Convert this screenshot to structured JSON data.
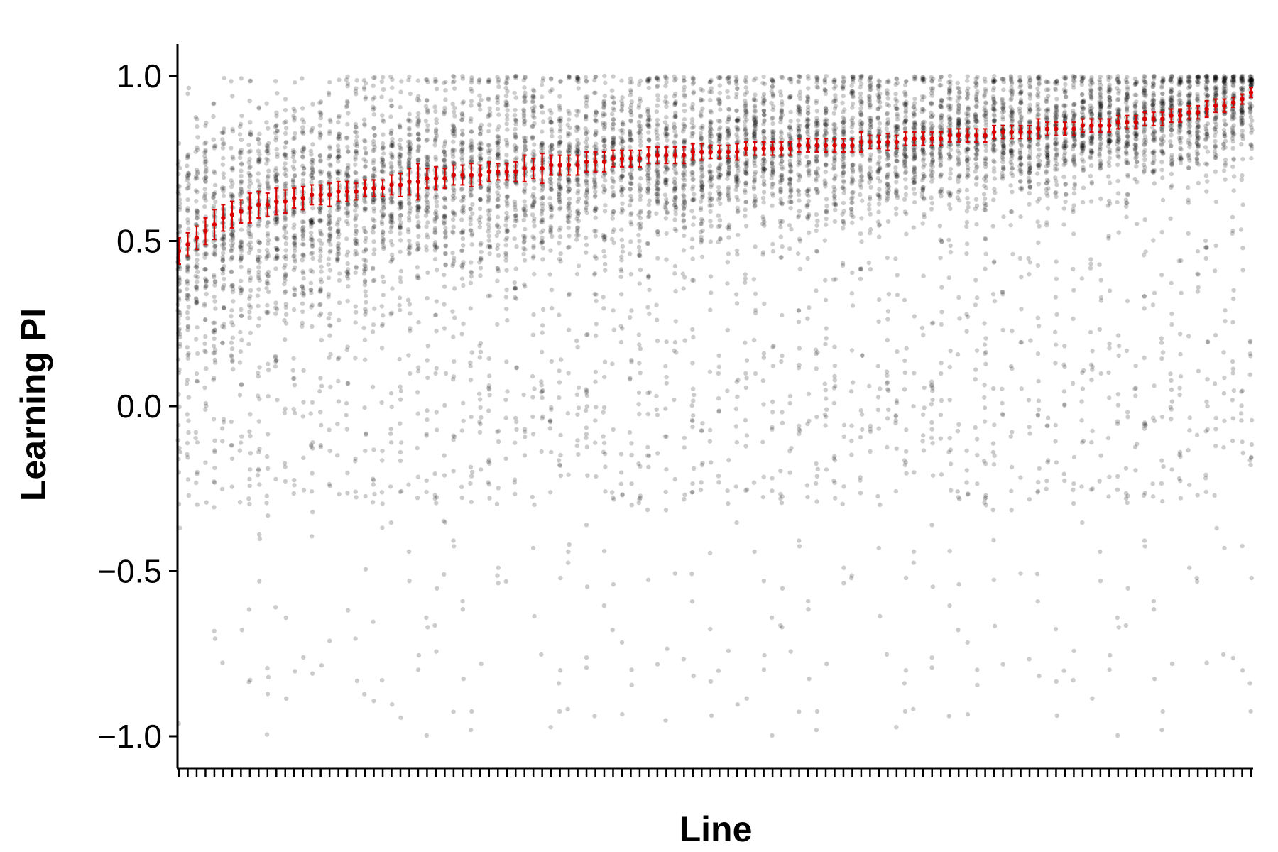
{
  "chart_data": {
    "type": "scatter",
    "xlabel": "Line",
    "ylabel": "Learning PI",
    "ylim": [
      -1.1,
      1.1
    ],
    "yticks": [
      -1.0,
      -0.5,
      0.0,
      0.5,
      1.0
    ],
    "ytick_labels": [
      "−1.0",
      "−0.5",
      "0.0",
      "0.5",
      "1.0"
    ],
    "n_lines": 122,
    "x_tick_labels_shown": false,
    "legend": "none",
    "grid": false,
    "colors": {
      "individual_points": "#000000",
      "mean_and_error": "#d90000",
      "axis": "#000000"
    },
    "individual_point_opacity": 0.2,
    "mean_start": 0.47,
    "mean_end": 0.95,
    "mean_pi": [
      0.47,
      0.49,
      0.51,
      0.53,
      0.55,
      0.57,
      0.58,
      0.59,
      0.6,
      0.61,
      0.61,
      0.62,
      0.62,
      0.63,
      0.63,
      0.64,
      0.64,
      0.64,
      0.65,
      0.65,
      0.65,
      0.66,
      0.66,
      0.66,
      0.67,
      0.67,
      0.68,
      0.68,
      0.69,
      0.69,
      0.69,
      0.7,
      0.7,
      0.7,
      0.7,
      0.71,
      0.71,
      0.71,
      0.71,
      0.72,
      0.72,
      0.72,
      0.73,
      0.73,
      0.73,
      0.73,
      0.74,
      0.74,
      0.74,
      0.75,
      0.75,
      0.75,
      0.75,
      0.76,
      0.76,
      0.76,
      0.76,
      0.76,
      0.77,
      0.77,
      0.77,
      0.77,
      0.77,
      0.77,
      0.78,
      0.78,
      0.78,
      0.78,
      0.78,
      0.78,
      0.79,
      0.79,
      0.79,
      0.79,
      0.79,
      0.79,
      0.79,
      0.8,
      0.8,
      0.8,
      0.8,
      0.8,
      0.81,
      0.81,
      0.81,
      0.81,
      0.81,
      0.82,
      0.82,
      0.82,
      0.82,
      0.82,
      0.83,
      0.83,
      0.83,
      0.83,
      0.83,
      0.84,
      0.84,
      0.84,
      0.84,
      0.84,
      0.85,
      0.85,
      0.85,
      0.85,
      0.86,
      0.86,
      0.86,
      0.87,
      0.87,
      0.87,
      0.88,
      0.88,
      0.89,
      0.89,
      0.9,
      0.91,
      0.91,
      0.92,
      0.93,
      0.95
    ],
    "sem": [
      0.04,
      0.035,
      0.035,
      0.04,
      0.045,
      0.04,
      0.04,
      0.035,
      0.045,
      0.04,
      0.035,
      0.04,
      0.035,
      0.03,
      0.035,
      0.03,
      0.03,
      0.035,
      0.03,
      0.03,
      0.025,
      0.025,
      0.025,
      0.025,
      0.03,
      0.035,
      0.04,
      0.055,
      0.03,
      0.035,
      0.03,
      0.03,
      0.03,
      0.035,
      0.03,
      0.03,
      0.025,
      0.025,
      0.03,
      0.04,
      0.03,
      0.045,
      0.03,
      0.03,
      0.03,
      0.03,
      0.03,
      0.03,
      0.03,
      0.025,
      0.025,
      0.025,
      0.025,
      0.025,
      0.025,
      0.025,
      0.025,
      0.025,
      0.025,
      0.025,
      0.02,
      0.02,
      0.02,
      0.025,
      0.02,
      0.02,
      0.02,
      0.02,
      0.02,
      0.02,
      0.02,
      0.02,
      0.02,
      0.02,
      0.02,
      0.02,
      0.02,
      0.03,
      0.02,
      0.02,
      0.025,
      0.02,
      0.02,
      0.02,
      0.02,
      0.02,
      0.02,
      0.02,
      0.02,
      0.02,
      0.02,
      0.02,
      0.02,
      0.02,
      0.02,
      0.02,
      0.02,
      0.03,
      0.02,
      0.02,
      0.02,
      0.02,
      0.02,
      0.02,
      0.02,
      0.02,
      0.02,
      0.02,
      0.02,
      0.02,
      0.02,
      0.02,
      0.02,
      0.02,
      0.02,
      0.02,
      0.025,
      0.02,
      0.02,
      0.015,
      0.015,
      0.015,
      0.015
    ],
    "individual_pi_sample": {
      "min": -1.0,
      "max": 1.0
    }
  }
}
